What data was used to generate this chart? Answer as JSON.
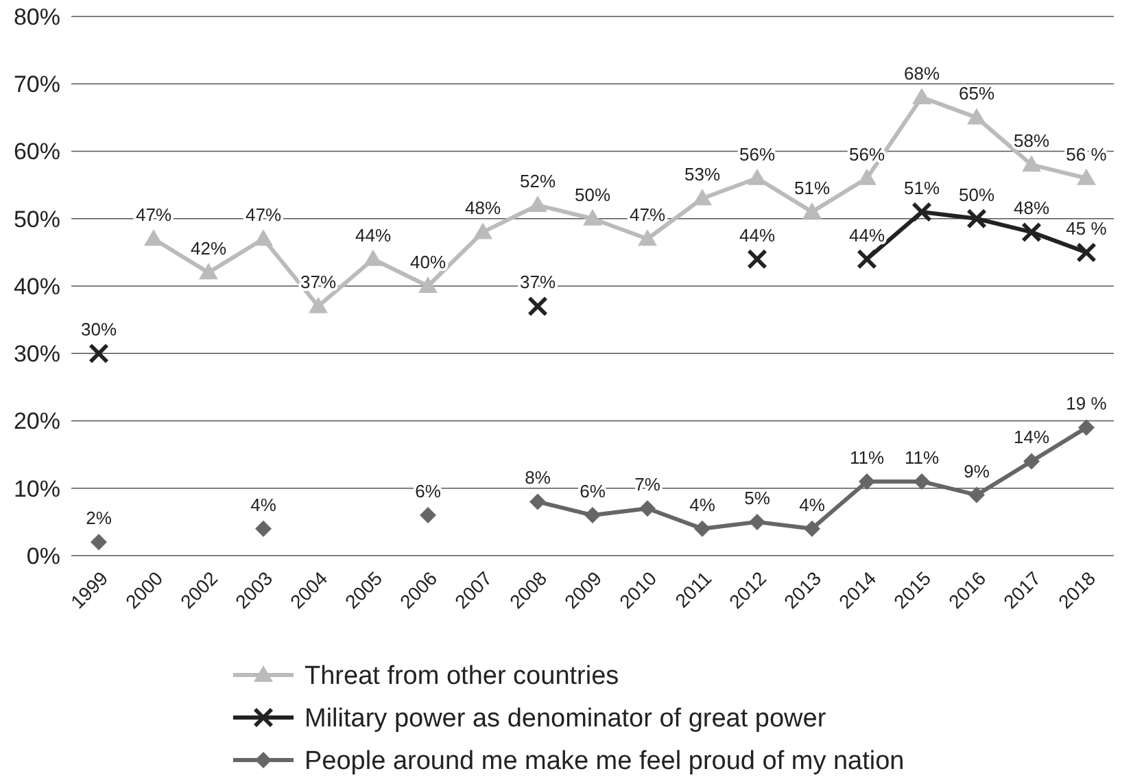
{
  "chart_data": {
    "type": "line",
    "categories": [
      "1999",
      "2000",
      "2002",
      "2003",
      "2004",
      "2005",
      "2006",
      "2007",
      "2008",
      "2009",
      "2010",
      "2011",
      "2012",
      "2013",
      "2014",
      "2015",
      "2016",
      "2017",
      "2018"
    ],
    "series": [
      {
        "name": "Threat from other countries",
        "color": "#bbbbbb",
        "marker": "triangle",
        "values": [
          null,
          47,
          42,
          47,
          37,
          44,
          40,
          48,
          52,
          50,
          47,
          53,
          56,
          51,
          56,
          68,
          65,
          58,
          56
        ],
        "value_labels": [
          null,
          "47%",
          "42%",
          "47%",
          "37%",
          "44%",
          "40%",
          "48%",
          "52%",
          "50%",
          "47%",
          "53%",
          "56%",
          "51%",
          "56%",
          "68%",
          "65%",
          "58%",
          "56 %"
        ]
      },
      {
        "name": "Military power as denominator of great power",
        "color": "#222222",
        "marker": "cross",
        "values": [
          30,
          null,
          null,
          null,
          null,
          null,
          null,
          null,
          37,
          null,
          null,
          null,
          44,
          null,
          44,
          51,
          50,
          48,
          45
        ],
        "value_labels": [
          "30%",
          null,
          null,
          null,
          null,
          null,
          null,
          null,
          "37%",
          null,
          null,
          null,
          "44%",
          null,
          "44%",
          "51%",
          "50%",
          "48%",
          "45 %"
        ]
      },
      {
        "name": "People around me make me feel proud of my nation",
        "color": "#666666",
        "marker": "diamond",
        "values": [
          2,
          null,
          null,
          4,
          null,
          null,
          6,
          null,
          8,
          6,
          7,
          4,
          5,
          4,
          11,
          11,
          9,
          14,
          19
        ],
        "value_labels": [
          "2%",
          null,
          null,
          "4%",
          null,
          null,
          "6%",
          null,
          "8%",
          "6%",
          "7%",
          "4%",
          "5%",
          "4%",
          "11%",
          "11%",
          "9%",
          "14%",
          "19 %"
        ]
      }
    ],
    "ylim": [
      0,
      80
    ],
    "yticks": [
      {
        "value": 0,
        "label": "0%"
      },
      {
        "value": 10,
        "label": "10%"
      },
      {
        "value": 20,
        "label": "20%"
      },
      {
        "value": 30,
        "label": "30%"
      },
      {
        "value": 40,
        "label": "40%"
      },
      {
        "value": 50,
        "label": "50%"
      },
      {
        "value": 60,
        "label": "60%"
      },
      {
        "value": 70,
        "label": "70%"
      },
      {
        "value": 80,
        "label": "80%"
      }
    ],
    "grid": "y",
    "legend": "bottom",
    "line_style": "solid"
  }
}
